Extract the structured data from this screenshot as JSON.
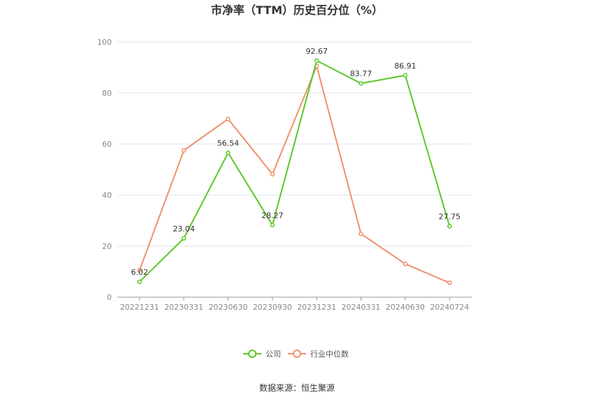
{
  "chart_data": {
    "type": "line",
    "title": "市净率（TTM）历史百分位（%）",
    "categories": [
      "20221231",
      "20230331",
      "20230630",
      "20230930",
      "20231231",
      "20240331",
      "20240630",
      "20240724"
    ],
    "ylim": [
      0,
      100
    ],
    "yticks": [
      "0",
      "20",
      "40",
      "60",
      "80",
      "100"
    ],
    "grid": true,
    "legend_position": "bottom",
    "series": [
      {
        "name": "公司",
        "color": "#5cc727",
        "values": [
          6.02,
          23.04,
          56.54,
          28.27,
          92.67,
          83.77,
          86.91,
          27.75
        ],
        "labels": [
          "6.02",
          "23.04",
          "56.54",
          "28.27",
          "92.67",
          "83.77",
          "86.91",
          "27.75"
        ]
      },
      {
        "name": "行业中位数",
        "color": "#f0906a",
        "values": [
          10.5,
          57.5,
          69.8,
          48.2,
          90.5,
          24.8,
          13.0,
          5.6
        ]
      }
    ]
  },
  "source": "数据来源：恒生聚源"
}
